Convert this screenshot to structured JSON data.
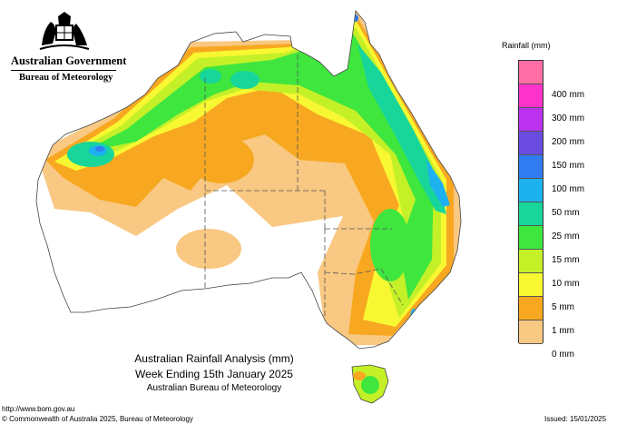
{
  "header": {
    "government": "Australian Government",
    "bureau": "Bureau of Meteorology"
  },
  "legend": {
    "title": "Rainfall (mm)",
    "classes": [
      {
        "label": "",
        "color": "#ff6fa6"
      },
      {
        "label": "400 mm",
        "color": "#ff33cc"
      },
      {
        "label": "300 mm",
        "color": "#bb33ee"
      },
      {
        "label": "200 mm",
        "color": "#6a4de0"
      },
      {
        "label": "150 mm",
        "color": "#2f7bef"
      },
      {
        "label": "100 mm",
        "color": "#1db2ef"
      },
      {
        "label": "50 mm",
        "color": "#18d69a"
      },
      {
        "label": "25 mm",
        "color": "#3ee63e"
      },
      {
        "label": "15 mm",
        "color": "#c4f028"
      },
      {
        "label": "10 mm",
        "color": "#f8f832"
      },
      {
        "label": "5 mm",
        "color": "#f8a820"
      },
      {
        "label": "1 mm",
        "color": "#f9c882"
      },
      {
        "label": "0 mm",
        "color": "#ffffff"
      }
    ]
  },
  "map": {
    "title_line1": "Australian Rainfall Analysis (mm)",
    "title_line2": "Week Ending 15th January 2025",
    "source": "Australian Bureau of Meteorology"
  },
  "footer": {
    "url": "http://www.bom.gov.au",
    "copyright": "© Commonwealth of Australia 2025, Bureau of Meteorology",
    "issued": "Issued: 15/01/2025"
  }
}
